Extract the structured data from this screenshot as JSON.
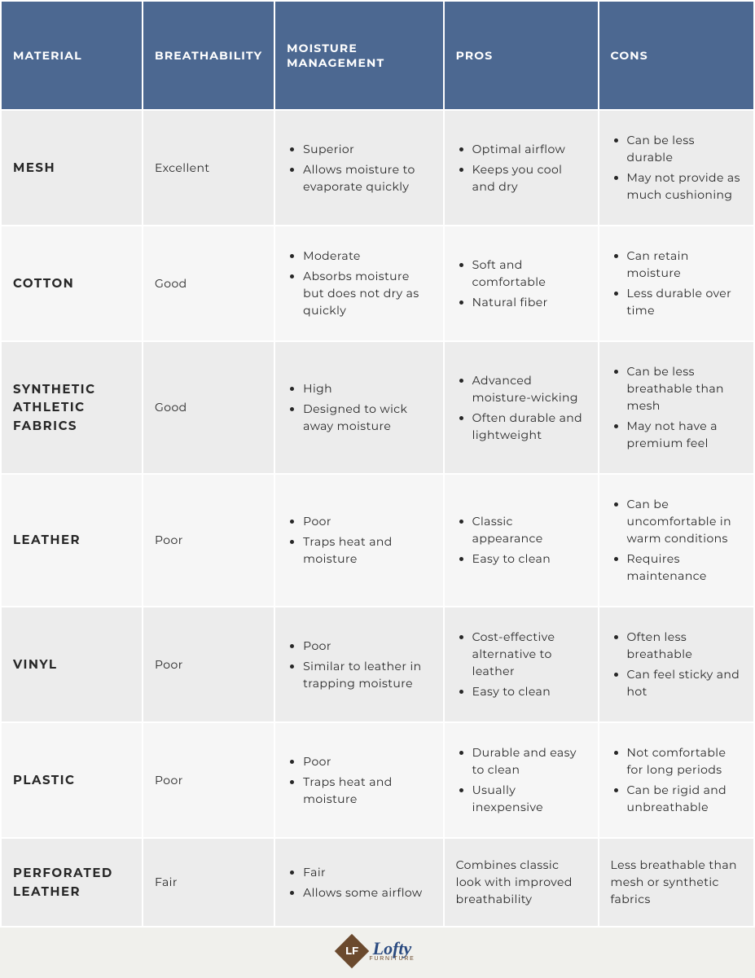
{
  "colors": {
    "header_bg": "#4c6891",
    "header_text": "#ffffff",
    "row_odd_bg": "#ececec",
    "row_even_bg": "#f6f6f6",
    "page_bg": "#f0f0ec",
    "text": "#272727",
    "logo_brown": "#6b4a2e",
    "logo_blue": "#2a4a80"
  },
  "typography": {
    "header_fontsize": 14,
    "header_weight": 700,
    "header_letterspacing": "0.08em",
    "cell_fontsize": 14,
    "material_fontsize": 15,
    "material_weight": 700
  },
  "table": {
    "columns": [
      "MATERIAL",
      "BREATHABILITY",
      "MOISTURE MANAGEMENT",
      "PROS",
      "CONS"
    ],
    "col_widths_pct": [
      19,
      16,
      23,
      21,
      21
    ],
    "rows": [
      {
        "material": "MESH",
        "breathability": "Excellent",
        "moisture": [
          "Superior",
          "Allows moisture to evaporate quickly"
        ],
        "pros": [
          "Optimal airflow",
          "Keeps you cool and dry"
        ],
        "cons": [
          "Can be less durable",
          "May not provide as much cushioning"
        ]
      },
      {
        "material": "COTTON",
        "breathability": "Good",
        "moisture": [
          "Moderate",
          "Absorbs moisture but does not dry as quickly"
        ],
        "pros": [
          "Soft and comfortable",
          "Natural fiber"
        ],
        "cons": [
          "Can retain moisture",
          "Less durable over time"
        ]
      },
      {
        "material": "SYNTHETIC ATHLETIC FABRICS",
        "breathability": "Good",
        "moisture": [
          "High",
          "Designed to wick away moisture"
        ],
        "pros": [
          "Advanced moisture-wicking",
          "Often durable and lightweight"
        ],
        "cons": [
          "Can be less breathable than mesh",
          "May not have a premium feel"
        ]
      },
      {
        "material": "LEATHER",
        "breathability": "Poor",
        "moisture": [
          "Poor",
          "Traps heat and moisture"
        ],
        "pros": [
          "Classic appearance",
          "Easy to clean"
        ],
        "cons": [
          "Can be uncomfortable in warm conditions",
          "Requires maintenance"
        ]
      },
      {
        "material": "VINYL",
        "breathability": "Poor",
        "moisture": [
          "Poor",
          "Similar to leather in trapping moisture"
        ],
        "pros": [
          "Cost-effective alternative to leather",
          "Easy to clean"
        ],
        "cons": [
          "Often less breathable",
          "Can feel sticky and hot"
        ]
      },
      {
        "material": "PLASTIC",
        "breathability": "Poor",
        "moisture": [
          "Poor",
          "Traps heat and moisture"
        ],
        "pros": [
          "Durable and easy to clean",
          "Usually inexpensive"
        ],
        "cons": [
          "Not comfortable for long periods",
          "Can be rigid and unbreathable"
        ]
      },
      {
        "material": "PERFORATED LEATHER",
        "breathability": "Fair",
        "moisture": [
          "Fair",
          "Allows some airflow"
        ],
        "pros": "Combines classic look with improved breathability",
        "cons": "Less breathable than mesh or synthetic fabrics"
      }
    ]
  },
  "logo": {
    "mark_text": "LF",
    "brand": "Lofty",
    "subline": "FURNITURE"
  }
}
